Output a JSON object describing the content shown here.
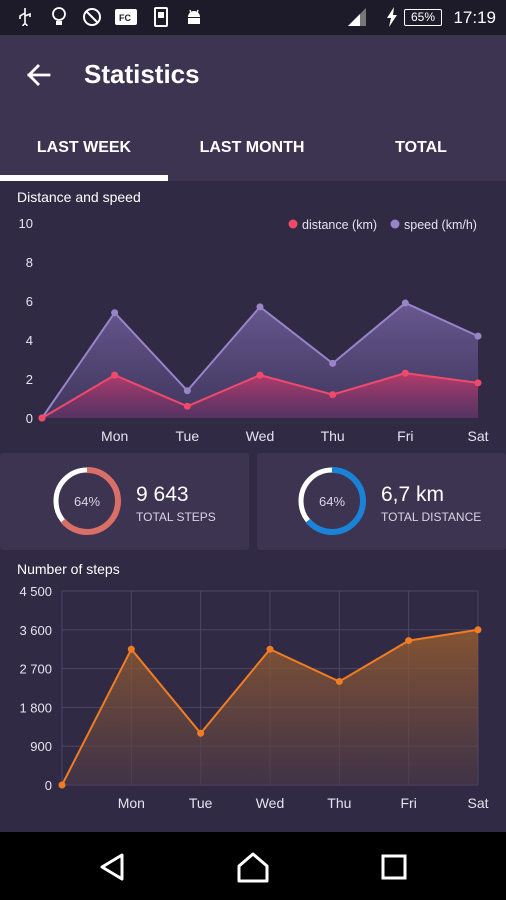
{
  "status_bar": {
    "time": "17:19",
    "battery": "65%",
    "icons": [
      "usb-icon",
      "bulb-icon",
      "no-sync-icon",
      "fc-icon",
      "phone-icon",
      "android-icon",
      "signal-icon",
      "charging-icon"
    ]
  },
  "header": {
    "title": "Statistics",
    "back_icon": "arrow-left-icon"
  },
  "tabs": [
    {
      "label": "LAST WEEK",
      "active": true
    },
    {
      "label": "LAST MONTH",
      "active": false
    },
    {
      "label": "TOTAL",
      "active": false
    }
  ],
  "distance_chart": {
    "title": "Distance and speed",
    "legend": [
      "distance (km)",
      "speed (km/h)"
    ],
    "colors": {
      "distance": "#ef4a6b",
      "speed": "#9a84c8"
    }
  },
  "summary": {
    "steps": {
      "percent": "64%",
      "value": "9 643",
      "caption": "TOTAL STEPS",
      "color": "#d96f66",
      "fraction": 0.64
    },
    "distance": {
      "percent": "64%",
      "value": "6,7 km",
      "caption": "TOTAL DISTANCE",
      "color": "#1a83d8",
      "fraction": 0.64
    }
  },
  "steps_chart": {
    "title": "Number of steps",
    "color": "#f07d22"
  },
  "chart_data": [
    {
      "type": "area",
      "title": "Distance and speed",
      "categories": [
        "",
        "Mon",
        "Tue",
        "Wed",
        "Thu",
        "Fri",
        "Sat"
      ],
      "series": [
        {
          "name": "distance (km)",
          "values": [
            0,
            2.2,
            0.6,
            2.2,
            1.2,
            2.3,
            1.8
          ]
        },
        {
          "name": "speed (km/h)",
          "values": [
            0,
            5.4,
            1.4,
            5.7,
            2.8,
            5.9,
            4.2
          ]
        }
      ],
      "yticks": [
        "0",
        "2",
        "4",
        "6",
        "8",
        "10"
      ],
      "ylim": [
        0,
        10
      ],
      "legend": "top-right",
      "grid": false
    },
    {
      "type": "area",
      "title": "Number of steps",
      "categories": [
        "",
        "Mon",
        "Tue",
        "Wed",
        "Thu",
        "Fri",
        "Sat"
      ],
      "series": [
        {
          "name": "",
          "values": [
            0,
            3150,
            1200,
            3150,
            2400,
            3350,
            3600
          ]
        }
      ],
      "yticks": [
        "0",
        "900",
        "1 800",
        "2 700",
        "3 600",
        "4 500"
      ],
      "ylim": [
        0,
        4500
      ],
      "grid": true
    }
  ]
}
